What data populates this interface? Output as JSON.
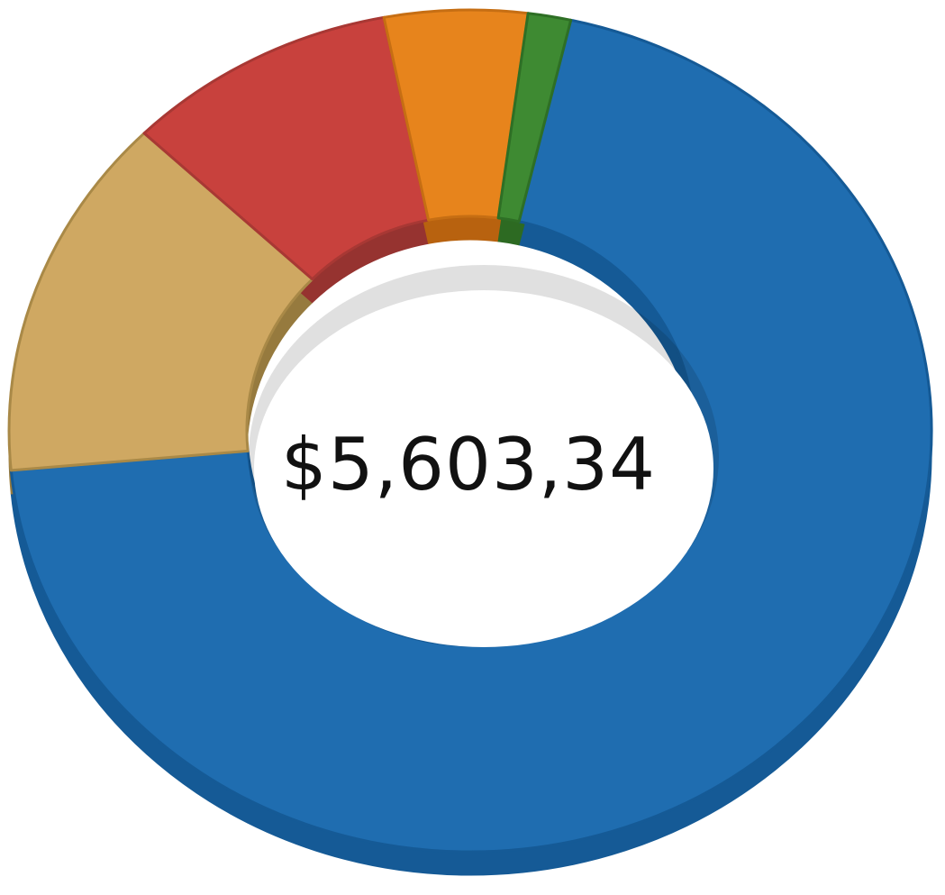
{
  "chart_data": {
    "type": "pie",
    "style": "3d-donut",
    "center_label": "$5,603,34",
    "title": "",
    "legend": "none",
    "series": [
      {
        "values": [
          70.0,
          14.0,
          9.5,
          5.0,
          1.5
        ],
        "colors": [
          "#1f6db0",
          "#cfa862",
          "#c8413d",
          "#e7841c",
          "#3e8a32"
        ],
        "side_colors": [
          "#155a96",
          "#967a3e",
          "#963330",
          "#b8620f",
          "#2d6a22"
        ],
        "rim_colors": [
          "#155a96",
          "#a98947",
          "#a83834",
          "#c66e13",
          "#2e6f25"
        ],
        "slice_names": [
          "blue",
          "tan",
          "red",
          "orange",
          "green"
        ]
      }
    ]
  }
}
